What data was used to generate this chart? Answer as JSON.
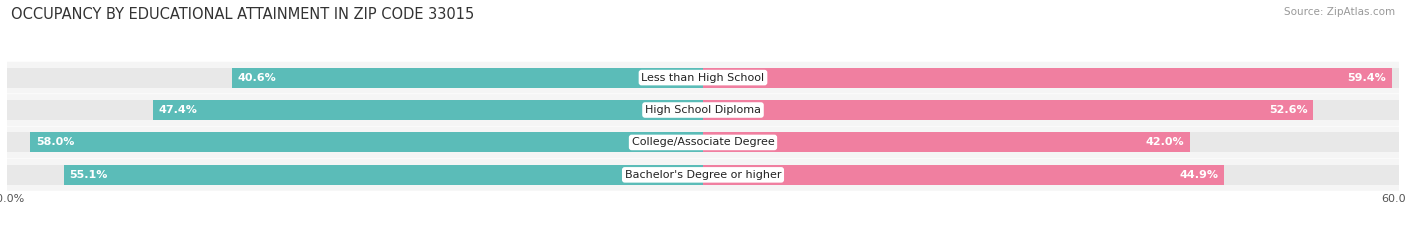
{
  "title": "OCCUPANCY BY EDUCATIONAL ATTAINMENT IN ZIP CODE 33015",
  "source": "Source: ZipAtlas.com",
  "categories": [
    "Less than High School",
    "High School Diploma",
    "College/Associate Degree",
    "Bachelor's Degree or higher"
  ],
  "owner_values": [
    40.6,
    47.4,
    58.0,
    55.1
  ],
  "renter_values": [
    59.4,
    52.6,
    42.0,
    44.9
  ],
  "owner_color": "#5bbcb8",
  "renter_color": "#f07fa0",
  "bar_bg_color": "#e8e8e8",
  "background_color": "#ffffff",
  "row_bg_color": "#f5f5f5",
  "title_fontsize": 10.5,
  "source_fontsize": 7.5,
  "bar_label_fontsize": 8,
  "category_fontsize": 8,
  "legend_fontsize": 8,
  "xlim": 60.0,
  "figsize": [
    14.06,
    2.33
  ],
  "dpi": 100
}
